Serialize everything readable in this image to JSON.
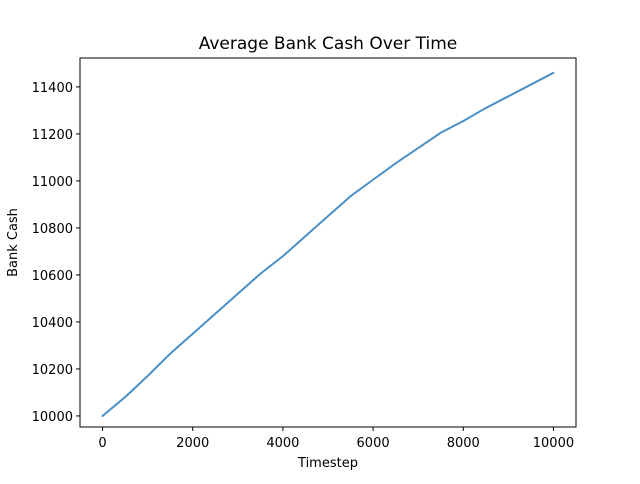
{
  "chart_data": {
    "type": "line",
    "title": "Average Bank Cash Over Time",
    "xlabel": "Timestep",
    "ylabel": "Bank Cash",
    "xlim": [
      -500,
      10500
    ],
    "ylim": [
      9953,
      11523
    ],
    "x_ticks": [
      0,
      2000,
      4000,
      6000,
      8000,
      10000
    ],
    "y_ticks": [
      10000,
      10200,
      10400,
      10600,
      10800,
      11000,
      11200,
      11400
    ],
    "x_tick_labels": [
      "0",
      "2000",
      "4000",
      "6000",
      "8000",
      "10000"
    ],
    "y_tick_labels": [
      "10000",
      "10200",
      "10400",
      "10600",
      "10800",
      "11000",
      "11200",
      "11400"
    ],
    "grid": false,
    "legend": "none",
    "series": [
      {
        "color": "#4a90c8",
        "x": [
          0,
          500,
          1000,
          1500,
          2000,
          2500,
          3000,
          3500,
          4000,
          4500,
          5000,
          5500,
          6000,
          6500,
          7000,
          7500,
          8000,
          8500,
          9000,
          9500,
          10000
        ],
        "values": [
          10000,
          10080,
          10170,
          10265,
          10350,
          10435,
          10520,
          10605,
          10680,
          10765,
          10850,
          10935,
          11005,
          11075,
          11140,
          11205,
          11255,
          11310,
          11360,
          11410,
          11460
        ]
      }
    ]
  }
}
